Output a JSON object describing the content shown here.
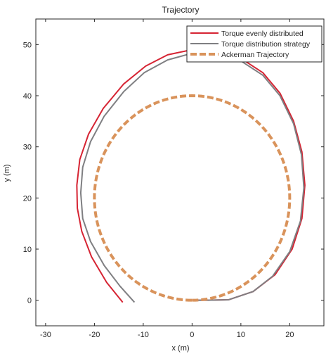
{
  "chart_data": {
    "type": "line",
    "title": "Trajectory",
    "xlabel": "x (m)",
    "ylabel": "y (m)",
    "xlim": [
      -32,
      27
    ],
    "ylim": [
      -5,
      55
    ],
    "xticks": [
      -30,
      -20,
      -10,
      0,
      10,
      20
    ],
    "yticks": [
      0,
      10,
      20,
      30,
      40,
      50
    ],
    "grid": false,
    "legend_position": "top-right",
    "series": [
      {
        "name": "Torque evenly distributed",
        "color": "#d62433",
        "style": "solid",
        "points": [
          [
            -14.2,
            -0.4
          ],
          [
            -17.5,
            3.5
          ],
          [
            -20.6,
            8.5
          ],
          [
            -22.6,
            13.5
          ],
          [
            -23.5,
            18.0
          ],
          [
            -23.6,
            22.5
          ],
          [
            -23.0,
            27.5
          ],
          [
            -21.2,
            32.5
          ],
          [
            -18.2,
            37.5
          ],
          [
            -14.0,
            42.3
          ],
          [
            -9.5,
            45.8
          ],
          [
            -5.0,
            48.0
          ],
          [
            0.0,
            49.0
          ],
          [
            5.0,
            48.9
          ],
          [
            10.0,
            47.3
          ],
          [
            14.5,
            44.5
          ],
          [
            18.0,
            40.5
          ],
          [
            20.8,
            35.0
          ],
          [
            22.5,
            29.0
          ],
          [
            23.1,
            22.5
          ],
          [
            22.5,
            16.0
          ],
          [
            20.5,
            10.0
          ],
          [
            17.0,
            5.0
          ],
          [
            12.5,
            1.7
          ],
          [
            7.5,
            0.1
          ],
          [
            3.0,
            0.0
          ],
          [
            0.0,
            0.0
          ]
        ]
      },
      {
        "name": "Torque distribution strategy",
        "color": "#7f7f82",
        "style": "solid",
        "points": [
          [
            -11.8,
            -0.4
          ],
          [
            -14.8,
            2.8
          ],
          [
            -18.0,
            6.8
          ],
          [
            -20.8,
            11.5
          ],
          [
            -22.4,
            16.0
          ],
          [
            -22.8,
            21.0
          ],
          [
            -22.4,
            26.0
          ],
          [
            -20.8,
            31.0
          ],
          [
            -18.0,
            36.0
          ],
          [
            -14.0,
            40.8
          ],
          [
            -9.8,
            44.5
          ],
          [
            -5.0,
            47.0
          ],
          [
            0.0,
            48.3
          ],
          [
            5.0,
            48.2
          ],
          [
            10.0,
            46.8
          ],
          [
            14.5,
            44.0
          ],
          [
            18.0,
            40.0
          ],
          [
            20.8,
            34.5
          ],
          [
            22.4,
            28.5
          ],
          [
            22.9,
            22.0
          ],
          [
            22.2,
            15.5
          ],
          [
            20.0,
            9.5
          ],
          [
            16.5,
            4.7
          ],
          [
            12.5,
            1.7
          ],
          [
            7.5,
            0.1
          ],
          [
            3.0,
            0.0
          ],
          [
            0.0,
            0.0
          ]
        ]
      },
      {
        "name": "Ackerman Trajectory",
        "color": "#d9935b",
        "style": "dashed",
        "circle": {
          "center": [
            0,
            20
          ],
          "radius": 20
        }
      }
    ]
  }
}
